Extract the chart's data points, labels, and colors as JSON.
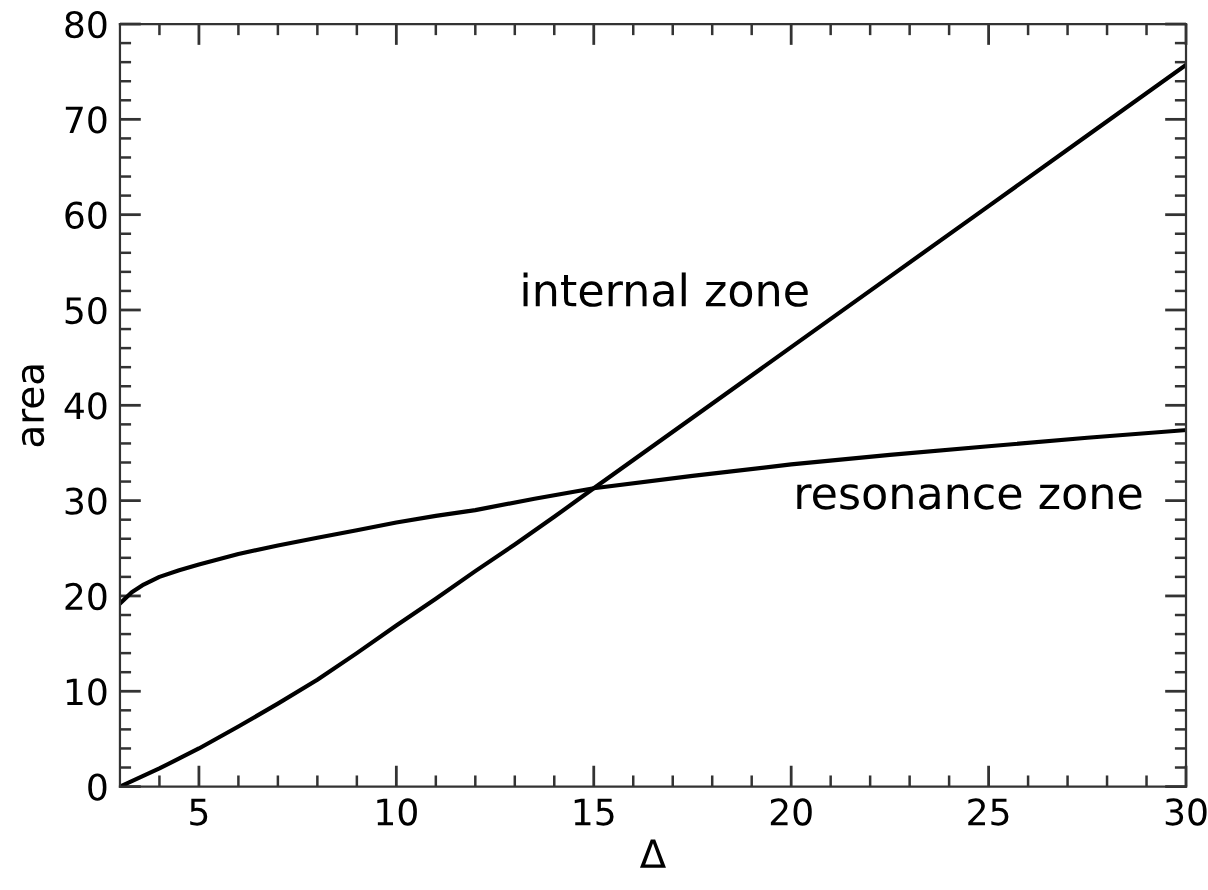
{
  "chart_data": {
    "type": "line",
    "xlabel": "Δ",
    "ylabel": "area",
    "xlim": [
      3,
      30
    ],
    "ylim": [
      0,
      80
    ],
    "xticks": [
      {
        "value": 4,
        "label": null
      },
      5,
      {
        "value": 6,
        "label": null
      },
      {
        "value": 7,
        "label": null
      },
      {
        "value": 8,
        "label": null
      },
      {
        "value": 9,
        "label": null
      },
      10,
      {
        "value": 11,
        "label": null
      },
      {
        "value": 12,
        "label": null
      },
      {
        "value": 13,
        "label": null
      },
      {
        "value": 14,
        "label": null
      },
      15,
      {
        "value": 16,
        "label": null
      },
      {
        "value": 17,
        "label": null
      },
      {
        "value": 18,
        "label": null
      },
      {
        "value": 19,
        "label": null
      },
      20,
      {
        "value": 21,
        "label": null
      },
      {
        "value": 22,
        "label": null
      },
      {
        "value": 23,
        "label": null
      },
      {
        "value": 24,
        "label": null
      },
      25,
      {
        "value": 26,
        "label": null
      },
      {
        "value": 27,
        "label": null
      },
      {
        "value": 28,
        "label": null
      },
      {
        "value": 29,
        "label": null
      },
      30
    ],
    "yticks": [
      0,
      {
        "value": 2,
        "label": null
      },
      {
        "value": 4,
        "label": null
      },
      {
        "value": 6,
        "label": null
      },
      {
        "value": 8,
        "label": null
      },
      10,
      {
        "value": 12,
        "label": null
      },
      {
        "value": 14,
        "label": null
      },
      {
        "value": 16,
        "label": null
      },
      {
        "value": 18,
        "label": null
      },
      20,
      {
        "value": 22,
        "label": null
      },
      {
        "value": 24,
        "label": null
      },
      {
        "value": 26,
        "label": null
      },
      {
        "value": 28,
        "label": null
      },
      30,
      {
        "value": 32,
        "label": null
      },
      {
        "value": 34,
        "label": null
      },
      {
        "value": 36,
        "label": null
      },
      {
        "value": 38,
        "label": null
      },
      40,
      {
        "value": 42,
        "label": null
      },
      {
        "value": 44,
        "label": null
      },
      {
        "value": 46,
        "label": null
      },
      {
        "value": 48,
        "label": null
      },
      50,
      {
        "value": 52,
        "label": null
      },
      {
        "value": 54,
        "label": null
      },
      {
        "value": 56,
        "label": null
      },
      {
        "value": 58,
        "label": null
      },
      60,
      {
        "value": 62,
        "label": null
      },
      {
        "value": 64,
        "label": null
      },
      {
        "value": 66,
        "label": null
      },
      {
        "value": 68,
        "label": null
      },
      70,
      {
        "value": 72,
        "label": null
      },
      {
        "value": 74,
        "label": null
      },
      {
        "value": 76,
        "label": null
      },
      {
        "value": 78,
        "label": null
      },
      80
    ],
    "line_style": "solid",
    "series": [
      {
        "color": "#000000",
        "x": [
          3,
          4,
          5,
          6,
          7,
          8,
          9,
          10,
          11,
          12,
          13,
          14,
          15,
          17.5,
          20,
          22.5,
          25,
          27.5,
          30
        ],
        "values": [
          0,
          1.9,
          4.0,
          6.3,
          8.7,
          11.2,
          14.0,
          16.9,
          19.7,
          22.6,
          25.4,
          28.3,
          31.3,
          38.7,
          46.1,
          53.5,
          60.9,
          68.3,
          75.7
        ]
      },
      {
        "color": "#000000",
        "x": [
          3,
          3.3,
          3.6,
          4,
          4.5,
          5,
          6,
          7,
          8,
          9,
          10,
          11,
          12,
          13.5,
          15,
          17.5,
          20,
          22.5,
          25,
          27.5,
          30
        ],
        "values": [
          19.2,
          20.4,
          21.2,
          22.0,
          22.7,
          23.3,
          24.4,
          25.3,
          26.1,
          26.9,
          27.7,
          28.4,
          29.0,
          30.2,
          31.3,
          32.6,
          33.8,
          34.8,
          35.7,
          36.6,
          37.4
        ]
      }
    ],
    "annotations": [
      "internal zone",
      "resonance zone"
    ]
  }
}
